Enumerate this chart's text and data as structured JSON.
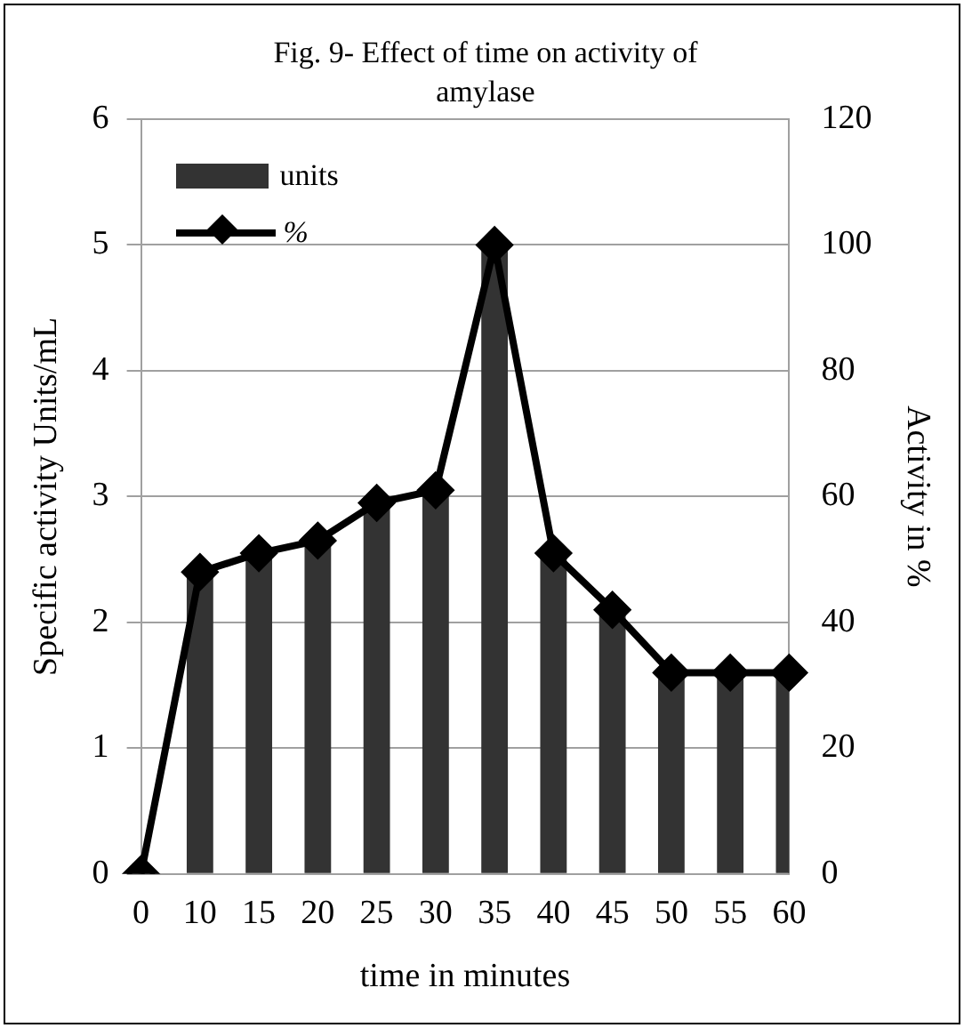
{
  "chart_data": {
    "type": "bar",
    "title": "Fig. 9- Effect of time on activity of amylase",
    "xlabel": "time in minutes",
    "ylabel": "Specific activity Units/mL",
    "y2label": "Activity in %",
    "categories": [
      "0",
      "10",
      "15",
      "20",
      "25",
      "30",
      "35",
      "40",
      "45",
      "50",
      "55",
      "60"
    ],
    "series": [
      {
        "name": "units",
        "color": "#333333",
        "values": [
          0,
          2.4,
          2.55,
          2.65,
          2.95,
          3.05,
          5.0,
          2.55,
          2.1,
          1.6,
          1.6,
          1.6
        ]
      },
      {
        "name": "%",
        "type": "line",
        "axis": "y2",
        "color": "#000000",
        "marker": "diamond",
        "values": [
          0,
          48,
          51,
          53,
          59,
          61,
          100,
          51,
          42,
          32,
          32,
          32
        ]
      }
    ],
    "ylim": [
      0,
      6
    ],
    "yticks": [
      0,
      1,
      2,
      3,
      4,
      5,
      6
    ],
    "y2lim": [
      0,
      120
    ],
    "y2ticks": [
      0,
      20,
      40,
      60,
      80,
      100,
      120
    ],
    "grid": "y",
    "legend": "top left"
  }
}
